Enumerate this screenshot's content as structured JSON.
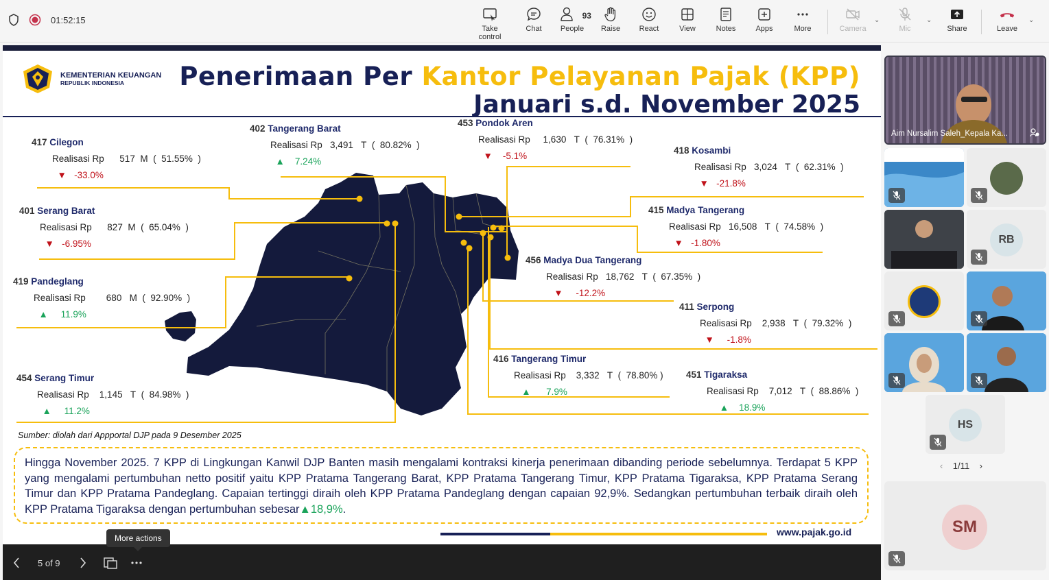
{
  "meeting": {
    "timer": "01:52:15",
    "toolbar": {
      "take_control": "Take control",
      "chat": "Chat",
      "people": "People",
      "people_count": "93",
      "raise": "Raise",
      "react": "React",
      "view": "View",
      "notes": "Notes",
      "apps": "Apps",
      "more": "More",
      "camera": "Camera",
      "mic": "Mic",
      "share": "Share",
      "leave": "Leave"
    }
  },
  "slide": {
    "org_name": "KEMENTERIAN KEUANGAN",
    "org_sub": "REPUBLIK INDONESIA",
    "title_part1": "Penerimaan Per",
    "title_part2": "Kantor Pelayanan Pajak (KPP)",
    "title_line2": "Januari s.d. November 2025",
    "realisasi_label": "Realisasi Rp",
    "kpp": [
      {
        "code": "417",
        "name": "Cilegon",
        "amount": "517",
        "unit": "M",
        "pct": "51.55%",
        "growth": "-33.0%",
        "dir": "down"
      },
      {
        "code": "402",
        "name": "Tangerang Barat",
        "amount": "3,491",
        "unit": "T",
        "pct": "80.82%",
        "growth": "7.24%",
        "dir": "up"
      },
      {
        "code": "453",
        "name": "Pondok Aren",
        "amount": "1,630",
        "unit": "T",
        "pct": "76.31%",
        "growth": "-5.1%",
        "dir": "down"
      },
      {
        "code": "418",
        "name": "Kosambi",
        "amount": "3,024",
        "unit": "T",
        "pct": "62.31%",
        "growth": "-21.8%",
        "dir": "down"
      },
      {
        "code": "401",
        "name": "Serang Barat",
        "amount": "827",
        "unit": "M",
        "pct": "65.04%",
        "growth": "-6.95%",
        "dir": "down"
      },
      {
        "code": "415",
        "name": "Madya Tangerang",
        "amount": "16,508",
        "unit": "T",
        "pct": "74.58%",
        "growth": "-1.80%",
        "dir": "down"
      },
      {
        "code": "456",
        "name": "Madya Dua Tangerang",
        "amount": "18,762",
        "unit": "T",
        "pct": "67.35%",
        "growth": "-12.2%",
        "dir": "down"
      },
      {
        "code": "419",
        "name": "Pandeglang",
        "amount": "680",
        "unit": "M",
        "pct": "92.90%",
        "growth": "11.9%",
        "dir": "up"
      },
      {
        "code": "411",
        "name": "Serpong",
        "amount": "2,938",
        "unit": "T",
        "pct": "79.32%",
        "growth": "-1.8%",
        "dir": "down"
      },
      {
        "code": "416",
        "name": "Tangerang Timur",
        "amount": "3,332",
        "unit": "T",
        "pct": "78.80%",
        "growth": "7.9%",
        "dir": "up"
      },
      {
        "code": "454",
        "name": "Serang Timur",
        "amount": "1,145",
        "unit": "T",
        "pct": "84.98%",
        "growth": "11.2%",
        "dir": "up"
      },
      {
        "code": "451",
        "name": "Tigaraksa",
        "amount": "7,012",
        "unit": "T",
        "pct": "88.86%",
        "growth": "18.9%",
        "dir": "up"
      }
    ],
    "source": "Sumber: diolah dari Appportal DJP pada 9 Desember 2025",
    "summary": "Hingga November 2025. 7 KPP di Lingkungan Kanwil DJP Banten masih mengalami kontraksi kinerja penerimaan dibanding periode sebelumnya. Terdapat 5 KPP yang mengalami pertumbuhan netto positif yaitu KPP Pratama Tangerang Barat, KPP Pratama Tangerang Timur, KPP Pratama Tigaraksa, KPP Pratama Serang Timur dan KPP Pratama Pandeglang. Capaian tertinggi diraih oleh KPP Pratama Pandeglang dengan capaian 92,9%. Sedangkan pertumbuhan terbaik diraih oleh KPP Pratama Tigaraksa dengan pertumbuhan sebesar",
    "summary_highlight": "18,9%",
    "summary_end": ".",
    "url": "www.pajak.go.id"
  },
  "slide_controls": {
    "page": "5 of 9",
    "tooltip": "More actions"
  },
  "participants": {
    "presenter": "Aim Nursalim Saleh_Kepala Ka...",
    "initials": [
      "RB",
      "HS",
      "SM"
    ],
    "pager": "1/11"
  },
  "colors": {
    "navy": "#172056",
    "gold": "#f6bd0d",
    "down": "#c0121a",
    "up": "#1aa35a",
    "leave": "#c4314b"
  }
}
